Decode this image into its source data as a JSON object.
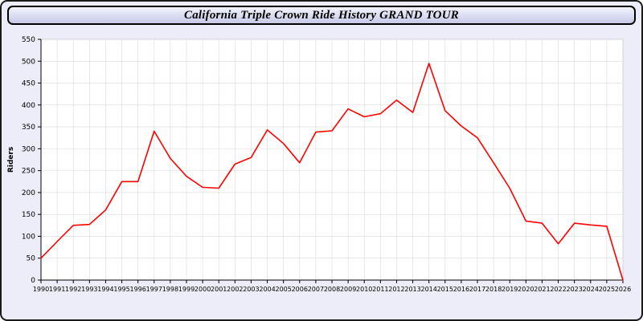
{
  "header": {
    "title": "California Triple Crown Ride History GRAND TOUR"
  },
  "chart_data": {
    "type": "line",
    "title": "California Triple Crown Ride History GRAND TOUR",
    "xlabel": "",
    "ylabel": "Riders",
    "ylim": [
      0,
      550
    ],
    "ytick_step": 50,
    "grid": true,
    "legend": "none",
    "line_color": "#ff0000",
    "plot_bg": "#ffffff",
    "grid_color": "#d9d9d9",
    "x": [
      1990,
      1991,
      1992,
      1993,
      1994,
      1995,
      1996,
      1997,
      1998,
      1999,
      2000,
      2001,
      2002,
      2003,
      2004,
      2005,
      2006,
      2007,
      2008,
      2009,
      2010,
      2011,
      2012,
      2013,
      2014,
      2015,
      2016,
      2017,
      2018,
      2019,
      2020,
      2021,
      2022,
      2023,
      2024,
      2025,
      2026
    ],
    "values": [
      50,
      88,
      125,
      127,
      160,
      225,
      225,
      340,
      278,
      237,
      212,
      210,
      265,
      280,
      343,
      312,
      268,
      338,
      341,
      391,
      373,
      380,
      411,
      383,
      495,
      387,
      352,
      325,
      268,
      210,
      135,
      130,
      83,
      130,
      126,
      123,
      0
    ]
  }
}
